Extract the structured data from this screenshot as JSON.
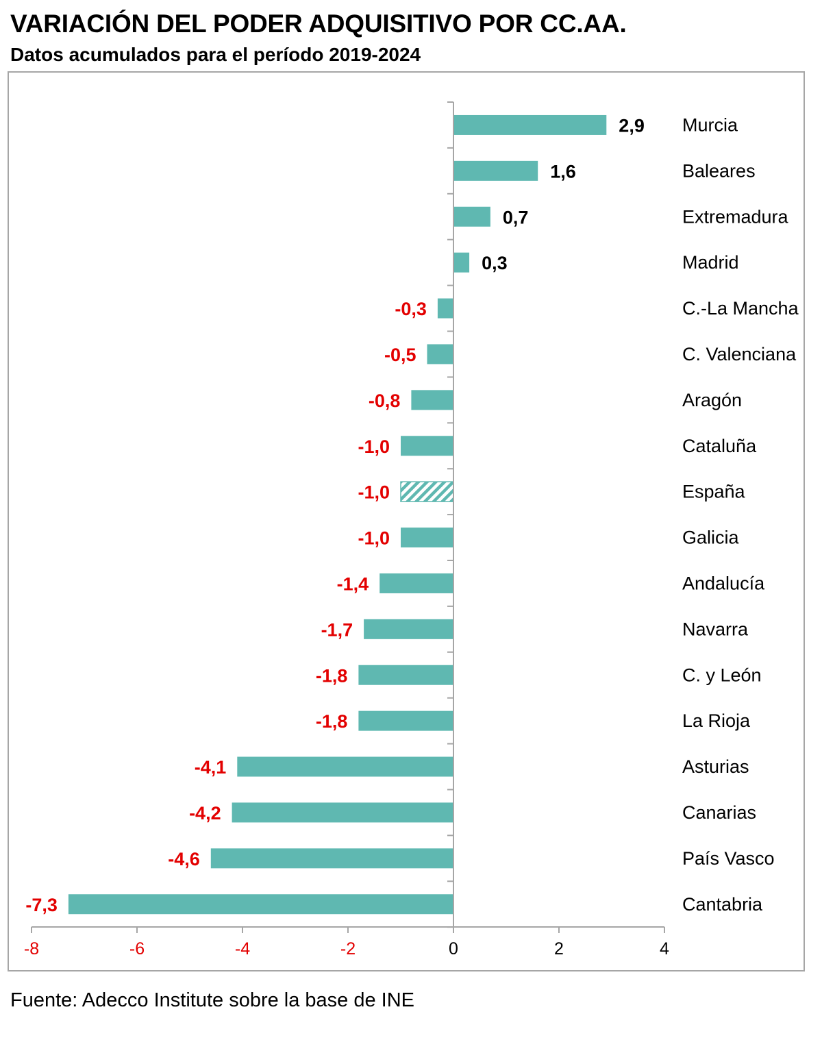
{
  "title": "VARIACIÓN DEL PODER ADQUISITIVO POR CC.AA.",
  "subtitle": "Datos acumulados para el período 2019-2024",
  "source": "Fuente: Adecco Institute sobre la base de INE",
  "colors": {
    "bar": "#5fb8b1",
    "positive_label": "#000000",
    "negative_label": "#e30000",
    "axis": "#a6a6a6"
  },
  "chart_data": {
    "type": "bar",
    "orientation": "horizontal",
    "title": "VARIACIÓN DEL PODER ADQUISITIVO POR CC.AA.",
    "subtitle": "Datos acumulados para el período 2019-2024",
    "categories": [
      "Murcia",
      "Baleares",
      "Extremadura",
      "Madrid",
      "C.-La Mancha",
      "C. Valenciana",
      "Aragón",
      "Cataluña",
      "España",
      "Galicia",
      "Andalucía",
      "Navarra",
      "C. y León",
      "La Rioja",
      "Asturias",
      "Canarias",
      "País Vasco",
      "Cantabria"
    ],
    "values": [
      2.9,
      1.6,
      0.7,
      0.3,
      -0.3,
      -0.5,
      -0.8,
      -1.0,
      -1.0,
      -1.0,
      -1.4,
      -1.7,
      -1.8,
      -1.8,
      -4.1,
      -4.2,
      -4.6,
      -7.3
    ],
    "value_labels": [
      "2,9",
      "1,6",
      "0,7",
      "0,3",
      "-0,3",
      "-0,5",
      "-0,8",
      "-1,0",
      "-1,0",
      "-1,0",
      "-1,4",
      "-1,7",
      "-1,8",
      "-1,8",
      "-4,1",
      "-4,2",
      "-4,6",
      "-7,3"
    ],
    "highlighted_category": "España",
    "highlight_style": "hatched",
    "xlim": [
      -8,
      4
    ],
    "xticks": [
      -8,
      -6,
      -4,
      -2,
      0,
      2,
      4
    ],
    "xtick_labels": [
      "-8",
      "-6",
      "-4",
      "-2",
      "0",
      "2",
      "4"
    ],
    "xlabel": "",
    "ylabel": "",
    "grid": false,
    "legend": "none"
  }
}
